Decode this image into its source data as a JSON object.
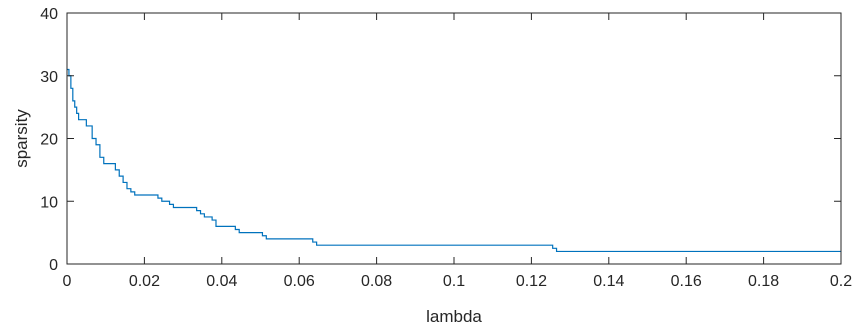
{
  "chart_data": {
    "type": "line",
    "title": "",
    "xlabel": "lambda",
    "ylabel": "sparsity",
    "xlim": [
      0,
      0.2
    ],
    "ylim": [
      0,
      40
    ],
    "x_ticks": [
      "0",
      "0.02",
      "0.04",
      "0.06",
      "0.08",
      "0.1",
      "0.12",
      "0.14",
      "0.16",
      "0.18",
      "0.2"
    ],
    "x_tick_values": [
      0,
      0.02,
      0.04,
      0.06,
      0.08,
      0.1,
      0.12,
      0.14,
      0.16,
      0.18,
      0.2
    ],
    "y_ticks": [
      "0",
      "10",
      "20",
      "30",
      "40"
    ],
    "y_tick_values": [
      0,
      10,
      20,
      30,
      40
    ],
    "grid": false,
    "series": [
      {
        "color": "#0072BD",
        "step": true,
        "x": [
          0,
          0.0005,
          0.001,
          0.0015,
          0.002,
          0.0025,
          0.003,
          0.004,
          0.005,
          0.0065,
          0.0075,
          0.0085,
          0.0095,
          0.0125,
          0.0135,
          0.0145,
          0.0155,
          0.0165,
          0.0175,
          0.0235,
          0.0245,
          0.0265,
          0.0275,
          0.0285,
          0.0335,
          0.0345,
          0.0355,
          0.0375,
          0.0385,
          0.0435,
          0.0445,
          0.0505,
          0.0515,
          0.0635,
          0.0645,
          0.1255,
          0.1265,
          0.2
        ],
        "y": [
          31,
          30,
          28,
          26,
          25,
          24,
          23,
          23,
          22,
          20,
          19,
          17,
          16,
          15,
          14,
          13,
          12,
          11.5,
          11,
          10.5,
          10,
          9.5,
          9,
          9,
          8.5,
          8,
          7.5,
          7,
          6,
          5.5,
          5,
          4.5,
          4,
          3.5,
          3,
          2.5,
          2,
          2
        ]
      }
    ]
  }
}
